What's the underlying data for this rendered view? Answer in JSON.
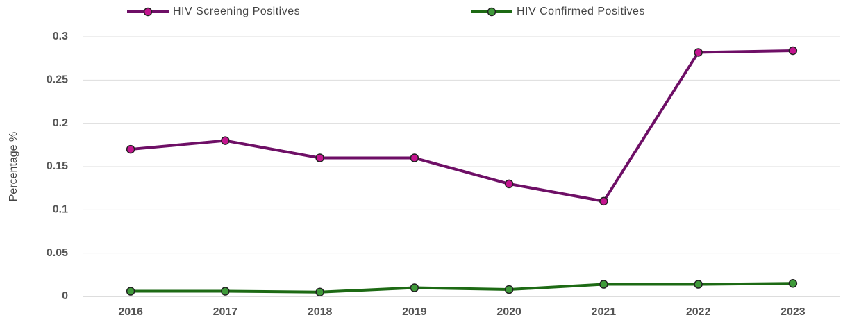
{
  "chart_data": {
    "type": "line",
    "y_label": "Percentage %",
    "categories": [
      "2016",
      "2017",
      "2018",
      "2019",
      "2020",
      "2021",
      "2022",
      "2023"
    ],
    "series": [
      {
        "name": "HIV Screening Positives",
        "color": "#6e0f66",
        "marker_color": "#c4148f",
        "values": [
          0.17,
          0.18,
          0.16,
          0.16,
          0.13,
          0.11,
          0.282,
          0.284
        ]
      },
      {
        "name": "HIV Confirmed Positives",
        "color": "#1d6a14",
        "marker_color": "#3f9a3a",
        "values": [
          0.006,
          0.006,
          0.005,
          0.01,
          0.008,
          0.014,
          0.014,
          0.015
        ]
      }
    ],
    "ylim": [
      0,
      0.3
    ],
    "yticks": [
      0,
      0.05,
      0.1,
      0.15,
      0.2,
      0.25,
      0.3
    ],
    "grid": true,
    "legend": "top"
  }
}
